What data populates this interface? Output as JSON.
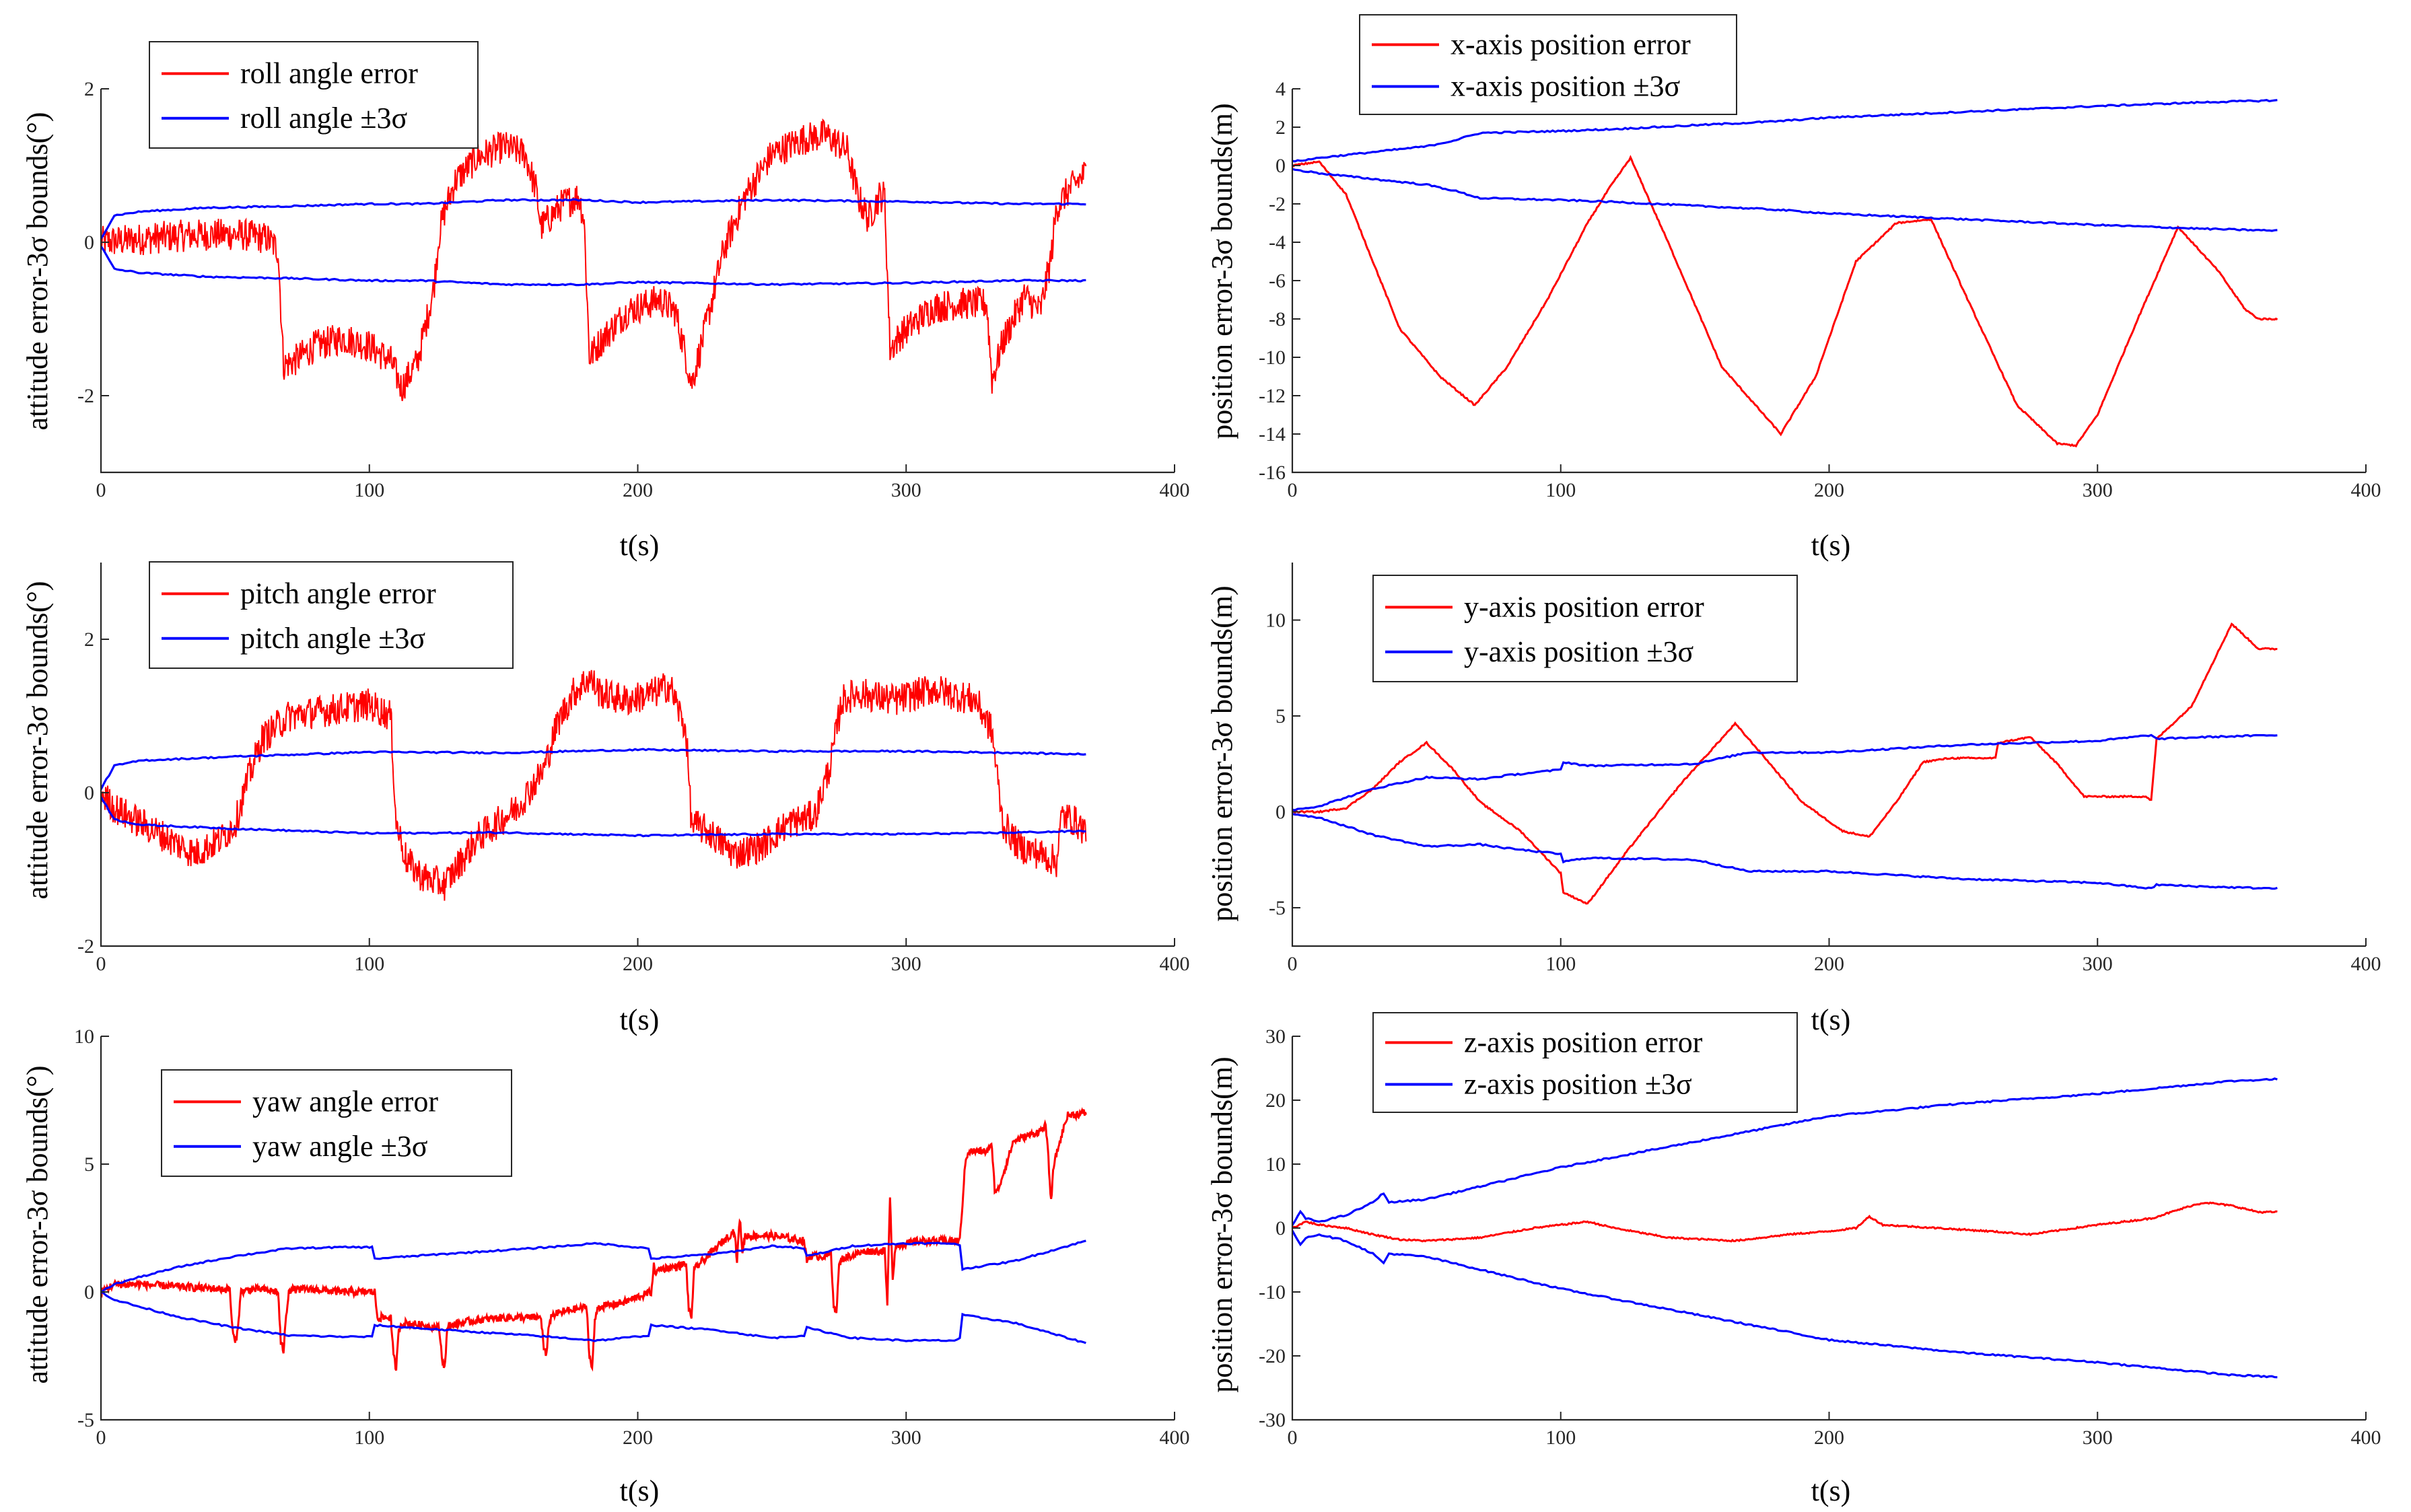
{
  "chart_data": [
    {
      "id": "roll",
      "type": "line",
      "xlabel": "t(s)",
      "ylabel": "attitude error-3σ bounds(°)",
      "xlim": [
        0,
        400
      ],
      "ylim": [
        -3,
        2
      ],
      "xticks": [
        0,
        100,
        200,
        300,
        400
      ],
      "yticks": [
        -2,
        0,
        2
      ],
      "legend_position": "top-left",
      "series": [
        {
          "name": "roll angle error",
          "color": "#ff0000",
          "style": "noisy",
          "x": [
            0,
            8,
            18,
            28,
            40,
            52,
            62,
            66,
            68,
            72,
            80,
            90,
            100,
            108,
            112,
            118,
            124,
            126,
            128,
            132,
            140,
            150,
            158,
            162,
            164,
            168,
            172,
            178,
            180,
            182,
            186,
            196,
            208,
            214,
            218,
            220,
            224,
            232,
            240,
            250,
            262,
            270,
            278,
            282,
            286,
            290,
            292,
            294,
            298,
            310,
            320,
            330,
            332,
            336,
            344,
            350,
            354,
            356,
            360,
            364,
            367
          ],
          "y": [
            0,
            0.02,
            0.05,
            0.08,
            0.1,
            0.1,
            0.05,
            -0.1,
            -1.6,
            -1.55,
            -1.35,
            -1.25,
            -1.35,
            -1.55,
            -1.9,
            -1.55,
            -0.6,
            0.1,
            0.4,
            0.8,
            1.1,
            1.25,
            1.15,
            0.7,
            0.2,
            0.35,
            0.5,
            0.6,
            0.3,
            -1.5,
            -1.3,
            -0.9,
            -0.75,
            -0.9,
            -1.5,
            -1.85,
            -1.3,
            -0.1,
            0.6,
            1.15,
            1.35,
            1.4,
            1.2,
            0.6,
            0.3,
            0.6,
            0.6,
            -1.4,
            -1.2,
            -0.85,
            -0.8,
            -0.8,
            -1.8,
            -1.3,
            -0.7,
            -0.9,
            -0.2,
            0.45,
            0.65,
            0.8,
            0.9
          ]
        },
        {
          "name": "roll angle ±3σ",
          "color": "#0000ff",
          "style": "band",
          "x": [
            0,
            5,
            15,
            40,
            70,
            100,
            120,
            150,
            180,
            200,
            250,
            300,
            340,
            367
          ],
          "y": [
            0.05,
            0.35,
            0.4,
            0.45,
            0.47,
            0.5,
            0.5,
            0.55,
            0.55,
            0.52,
            0.55,
            0.53,
            0.5,
            0.5
          ]
        }
      ]
    },
    {
      "id": "x_pos",
      "type": "line",
      "xlabel": "t(s)",
      "ylabel": "position error-3σ bounds(m)",
      "xlim": [
        0,
        400
      ],
      "ylim": [
        -16,
        4
      ],
      "xticks": [
        0,
        100,
        200,
        300,
        400
      ],
      "yticks": [
        -16,
        -14,
        -12,
        -10,
        -8,
        -6,
        -4,
        -2,
        0,
        2,
        4
      ],
      "legend_position": "top-left",
      "series": [
        {
          "name": "x-axis position error",
          "color": "#ff0000",
          "style": "smooth",
          "x": [
            0,
            10,
            20,
            30,
            40,
            55,
            68,
            80,
            95,
            110,
            118,
            126,
            140,
            160,
            182,
            195,
            210,
            225,
            238,
            250,
            270,
            285,
            292,
            300,
            315,
            330,
            345,
            355,
            360,
            367
          ],
          "y": [
            0,
            0.2,
            -1.5,
            -5,
            -8.5,
            -11,
            -12.5,
            -10.5,
            -7,
            -3,
            -1.2,
            0.4,
            -4,
            -10.5,
            -14,
            -11,
            -5,
            -3,
            -2.8,
            -6.5,
            -12.5,
            -14.5,
            -14.6,
            -13,
            -8,
            -3.2,
            -5.5,
            -7.5,
            -8,
            -8
          ]
        },
        {
          "name": "x-axis position ±3σ",
          "color": "#0000ff",
          "style": "band",
          "x": [
            0,
            10,
            30,
            50,
            60,
            70,
            100,
            120,
            150,
            180,
            200,
            250,
            300,
            340,
            367
          ],
          "y": [
            0.2,
            0.4,
            0.7,
            1.0,
            1.3,
            1.7,
            1.8,
            1.9,
            2.1,
            2.3,
            2.5,
            2.8,
            3.1,
            3.3,
            3.4
          ]
        }
      ]
    },
    {
      "id": "pitch",
      "type": "line",
      "xlabel": "t(s)",
      "ylabel": "attitude error-3σ bounds(°)",
      "xlim": [
        0,
        400
      ],
      "ylim": [
        -2,
        3
      ],
      "xticks": [
        0,
        100,
        200,
        300,
        400
      ],
      "yticks": [
        -2,
        0,
        2
      ],
      "legend_position": "top-left",
      "series": [
        {
          "name": "pitch angle error",
          "color": "#ff0000",
          "style": "noisy",
          "x": [
            0,
            5,
            15,
            25,
            35,
            45,
            50,
            55,
            60,
            70,
            80,
            90,
            100,
            108,
            110,
            114,
            120,
            128,
            140,
            155,
            165,
            170,
            176,
            182,
            186,
            196,
            206,
            212,
            218,
            220,
            226,
            236,
            246,
            256,
            266,
            272,
            276,
            282,
            296,
            310,
            326,
            332,
            336,
            342,
            350,
            356,
            358,
            362,
            367
          ],
          "y": [
            0,
            -0.2,
            -0.4,
            -0.6,
            -0.8,
            -0.6,
            -0.4,
            0.2,
            0.7,
            1.0,
            1.05,
            1.1,
            1.15,
            1.0,
            -0.4,
            -0.9,
            -1.1,
            -1.2,
            -0.6,
            -0.2,
            0.3,
            0.9,
            1.3,
            1.5,
            1.3,
            1.2,
            1.3,
            1.4,
            0.8,
            -0.4,
            -0.5,
            -0.8,
            -0.7,
            -0.4,
            -0.3,
            0.4,
            1.2,
            1.3,
            1.2,
            1.35,
            1.2,
            0.8,
            -0.4,
            -0.7,
            -0.8,
            -0.9,
            -0.3,
            -0.35,
            -0.5
          ]
        },
        {
          "name": "pitch angle ±3σ",
          "color": "#0000ff",
          "style": "band",
          "x": [
            0,
            5,
            15,
            50,
            100,
            150,
            200,
            250,
            300,
            340,
            367
          ],
          "y": [
            0.05,
            0.35,
            0.42,
            0.47,
            0.53,
            0.52,
            0.56,
            0.54,
            0.54,
            0.52,
            0.5
          ]
        }
      ]
    },
    {
      "id": "y_pos",
      "type": "line",
      "xlabel": "t(s)",
      "ylabel": "position error-3σ bounds(m)",
      "xlim": [
        0,
        400
      ],
      "ylim": [
        -7,
        13
      ],
      "xticks": [
        0,
        100,
        200,
        300,
        400
      ],
      "yticks": [
        -5,
        0,
        5,
        10
      ],
      "legend_position": "top-left",
      "series": [
        {
          "name": "y-axis position error",
          "color": "#ff0000",
          "style": "smooth",
          "x": [
            0,
            10,
            20,
            30,
            40,
            50,
            60,
            70,
            85,
            100,
            101,
            110,
            125,
            145,
            165,
            175,
            190,
            205,
            215,
            225,
            235,
            245,
            262,
            263,
            275,
            285,
            295,
            305,
            318,
            320,
            322,
            335,
            350,
            360,
            367
          ],
          "y": [
            0,
            0,
            0.2,
            1.2,
            2.6,
            3.6,
            2.2,
            0.5,
            -1,
            -3.2,
            -4.2,
            -4.8,
            -2,
            1.5,
            4.6,
            3,
            0.5,
            -1,
            -1.3,
            0.5,
            2.6,
            2.8,
            2.8,
            3.6,
            3.9,
            2.5,
            0.8,
            0.8,
            0.8,
            0.6,
            3.8,
            5.5,
            9.8,
            8.5,
            8.5
          ]
        },
        {
          "name": "y-axis position ±3σ",
          "color": "#0000ff",
          "style": "band",
          "x": [
            0,
            10,
            30,
            50,
            70,
            80,
            100,
            101,
            110,
            150,
            170,
            200,
            250,
            300,
            320,
            322,
            340,
            367
          ],
          "y": [
            0.1,
            0.3,
            1.2,
            1.8,
            1.7,
            1.9,
            2.2,
            2.6,
            2.4,
            2.5,
            3.1,
            3.1,
            3.5,
            3.7,
            4.0,
            3.8,
            3.9,
            4.0
          ]
        }
      ]
    },
    {
      "id": "yaw",
      "type": "line",
      "xlabel": "t(s)",
      "ylabel": "attitude error-3σ bounds(°)",
      "xlim": [
        0,
        400
      ],
      "ylim": [
        -5,
        10
      ],
      "xticks": [
        0,
        100,
        200,
        300,
        400
      ],
      "yticks": [
        -5,
        0,
        5,
        10
      ],
      "legend_position": "top-left",
      "series": [
        {
          "name": "yaw angle error",
          "color": "#ff0000",
          "style": "spiky",
          "x": [
            0,
            5,
            15,
            30,
            48,
            49,
            50,
            51,
            52,
            56,
            60,
            66,
            67,
            68,
            69,
            70,
            80,
            90,
            102,
            103,
            104,
            108,
            109,
            110,
            111,
            112,
            120,
            126,
            127,
            128,
            129,
            130,
            140,
            150,
            160,
            164,
            165,
            166,
            167,
            168,
            175,
            181,
            182,
            183,
            184,
            185,
            195,
            205,
            206,
            207,
            208,
            215,
            218,
            219,
            220,
            221,
            222,
            230,
            236,
            237,
            238,
            239,
            240,
            250,
            262,
            263,
            264,
            270,
            272,
            273,
            274,
            275,
            276,
            285,
            292,
            293,
            294,
            295,
            296,
            305,
            320,
            322,
            323,
            330,
            332,
            333,
            334,
            340,
            350,
            352,
            353,
            354,
            355,
            360,
            367
          ],
          "y": [
            0,
            0.3,
            0.3,
            0.2,
            0.1,
            -1.5,
            -2,
            -1.5,
            0,
            0.1,
            0.1,
            0,
            -2,
            -2.3,
            -1,
            0.1,
            0.1,
            0,
            0,
            -1,
            -1,
            -1,
            -2.5,
            -3,
            -1.5,
            -1.2,
            -1.3,
            -1.4,
            -2.5,
            -3,
            -1.5,
            -1.3,
            -1.1,
            -1,
            -1,
            -1,
            -2.2,
            -2.5,
            -1.2,
            -0.9,
            -0.7,
            -0.6,
            -2.5,
            -3,
            -1.2,
            -0.6,
            -0.4,
            0,
            1,
            0.7,
            0.9,
            1,
            1.1,
            -0.7,
            -1,
            0.8,
            1,
            1.8,
            2.4,
            1.2,
            2.9,
            1.6,
            2.2,
            2.2,
            2.0,
            1.2,
            1.4,
            1.4,
            1.5,
            -0.5,
            -0.8,
            1.0,
            1.3,
            1.6,
            1.6,
            -0.5,
            3.8,
            0.5,
            1.8,
            2.0,
            2.0,
            5.0,
            5.5,
            5.5,
            5.7,
            4.0,
            3.9,
            5.9,
            6.3,
            6.5,
            5.2,
            3.5,
            5.0,
            6.9,
            7.0
          ]
        },
        {
          "name": "yaw angle ±3σ",
          "color": "#0000ff",
          "style": "band",
          "x": [
            0,
            5,
            15,
            30,
            50,
            70,
            90,
            101,
            102,
            130,
            160,
            185,
            204,
            205,
            230,
            250,
            262,
            263,
            280,
            300,
            318,
            320,
            321,
            340,
            367
          ],
          "y": [
            0,
            0.3,
            0.6,
            1.0,
            1.4,
            1.7,
            1.75,
            1.75,
            1.3,
            1.5,
            1.7,
            1.9,
            1.7,
            1.3,
            1.5,
            1.8,
            1.7,
            1.4,
            1.8,
            1.9,
            1.9,
            1.8,
            0.9,
            1.2,
            2.0
          ]
        }
      ]
    },
    {
      "id": "z_pos",
      "type": "line",
      "xlabel": "t(s)",
      "ylabel": "position error-3σ bounds(m)",
      "xlim": [
        0,
        400
      ],
      "ylim": [
        -30,
        30
      ],
      "xticks": [
        0,
        100,
        200,
        300,
        400
      ],
      "yticks": [
        -30,
        -20,
        -10,
        0,
        10,
        20,
        30
      ],
      "legend_position": "top-left",
      "series": [
        {
          "name": "z-axis position error",
          "color": "#ff0000",
          "style": "smooth",
          "x": [
            0,
            5,
            10,
            20,
            30,
            40,
            50,
            70,
            90,
            100,
            110,
            120,
            140,
            165,
            185,
            200,
            210,
            215,
            220,
            240,
            260,
            275,
            300,
            320,
            335,
            340,
            350,
            360,
            367
          ],
          "y": [
            0,
            1,
            0.5,
            0,
            -1,
            -1.8,
            -2,
            -1.5,
            0,
            0.5,
            1,
            0,
            -1.5,
            -2,
            -1,
            -0.5,
            0,
            1.8,
            0.5,
            0,
            -0.5,
            -1,
            0.5,
            1.5,
            3.5,
            4,
            3.5,
            2.5,
            2.5
          ]
        },
        {
          "name": "z-axis position ±3σ",
          "color": "#0000ff",
          "style": "band",
          "x": [
            0,
            3,
            5,
            10,
            20,
            30,
            34,
            36,
            50,
            100,
            150,
            200,
            250,
            300,
            350,
            367
          ],
          "y": [
            0.5,
            2.5,
            1.5,
            1,
            2,
            4,
            5.5,
            4,
            4.5,
            9.5,
            13.5,
            17.5,
            19.5,
            21,
            23,
            23.3
          ]
        }
      ]
    }
  ]
}
